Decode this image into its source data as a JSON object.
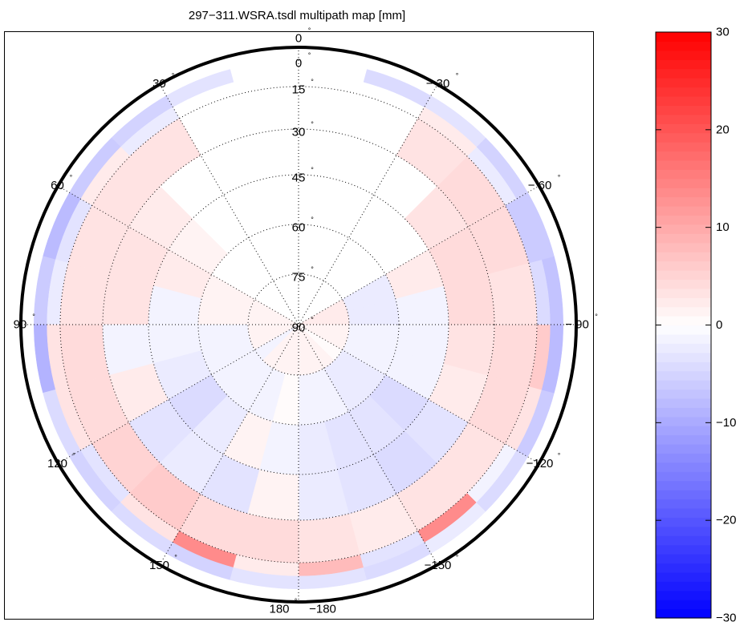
{
  "title": "297−311.WSRA.tsdl multipath map [mm]",
  "chart_data": {
    "type": "heatmap",
    "projection": "polar skyplot (azimuth / elevation)",
    "title": "297−311.WSRA.tsdl multipath map [mm]",
    "grid": true,
    "azimuth_ticks": [
      {
        "az": 0,
        "label": "0"
      },
      {
        "az": 30,
        "label": "30"
      },
      {
        "az": 60,
        "label": "60"
      },
      {
        "az": 90,
        "label": "90"
      },
      {
        "az": 120,
        "label": "120"
      },
      {
        "az": 150,
        "label": "150"
      },
      {
        "az": 180,
        "label": "180"
      },
      {
        "az": -180,
        "label": "−180"
      },
      {
        "az": -150,
        "label": "−150"
      },
      {
        "az": -120,
        "label": "−120"
      },
      {
        "az": -90,
        "label": "− 90"
      },
      {
        "az": -60,
        "label": "− 60"
      },
      {
        "az": -30,
        "label": "− 30"
      }
    ],
    "elevation_ticks": [
      "0",
      "15",
      "30",
      "45",
      "60",
      "75",
      "90"
    ],
    "elevation_tick_values": [
      0,
      15,
      30,
      45,
      60,
      75,
      90
    ],
    "degree_symbol": "°",
    "azimuth_bin_centers": [
      -172.5,
      -157.5,
      -142.5,
      -127.5,
      -112.5,
      -97.5,
      -82.5,
      -67.5,
      -52.5,
      -37.5,
      -22.5,
      -7.5,
      7.5,
      22.5,
      37.5,
      52.5,
      67.5,
      82.5,
      97.5,
      112.5,
      127.5,
      142.5,
      157.5,
      172.5
    ],
    "elevation_bin_edges": [
      5,
      10,
      15,
      30,
      45,
      60,
      75,
      90
    ],
    "values_mm": [
      [
        -3,
        8,
        3,
        -2,
        -2,
        -1,
        1
      ],
      [
        -4,
        -3,
        2,
        -3,
        -3,
        -1,
        1
      ],
      [
        -2,
        14,
        3,
        -4,
        -3,
        -2,
        1
      ],
      [
        -4,
        -1,
        3,
        -3,
        -4,
        -2,
        0
      ],
      [
        -6,
        3,
        4,
        2,
        -1,
        -1,
        1
      ],
      [
        -8,
        6,
        4,
        3,
        -1,
        -1,
        1
      ],
      [
        -7,
        -4,
        3,
        4,
        -1,
        -2,
        2
      ],
      [
        -6,
        -6,
        4,
        4,
        2,
        -2,
        2
      ],
      [
        -5,
        -2,
        4,
        3,
        null,
        null,
        null
      ],
      [
        -3,
        2,
        3,
        null,
        null,
        null,
        null
      ],
      [
        -4,
        null,
        null,
        null,
        null,
        null,
        null
      ],
      [
        null,
        null,
        null,
        null,
        null,
        null,
        null
      ],
      [
        null,
        null,
        null,
        null,
        null,
        null,
        null
      ],
      [
        -3,
        null,
        null,
        null,
        null,
        null,
        null
      ],
      [
        -5,
        -2,
        3,
        null,
        null,
        null,
        null
      ],
      [
        -6,
        2,
        3,
        2,
        1,
        null,
        null
      ],
      [
        -8,
        -3,
        3,
        3,
        2,
        1,
        1
      ],
      [
        -6,
        -2,
        3,
        3,
        -1,
        1,
        1
      ],
      [
        -9,
        3,
        4,
        -1,
        -1,
        -1,
        1
      ],
      [
        -4,
        3,
        4,
        2,
        -2,
        -1,
        1
      ],
      [
        -5,
        -3,
        5,
        -3,
        -4,
        -1,
        -1
      ],
      [
        -4,
        3,
        6,
        -2,
        -2,
        -1,
        1
      ],
      [
        -5,
        14,
        4,
        -3,
        1,
        -1,
        1
      ],
      [
        -3,
        2,
        4,
        1,
        -1,
        0,
        1
      ]
    ],
    "colorbar": {
      "range": [
        -30,
        30
      ],
      "ticks": [
        30,
        20,
        10,
        0,
        -10,
        -20,
        -30
      ],
      "tick_labels": [
        "30",
        "20",
        "10",
        "0",
        "−10",
        "−20",
        "−30"
      ],
      "colormap": "blue-white-red",
      "levels": 64,
      "low_color": "#0000ff",
      "mid_color": "#ffffff",
      "high_color": "#ff0000"
    }
  }
}
